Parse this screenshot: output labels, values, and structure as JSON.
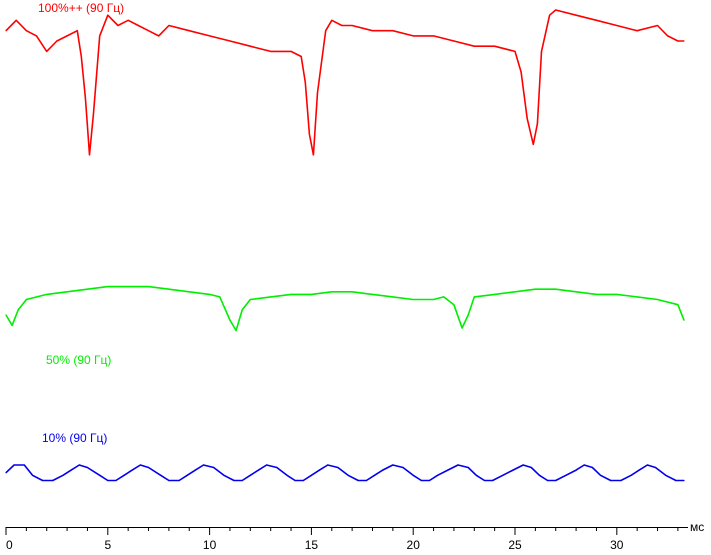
{
  "chart_data": {
    "type": "line",
    "xlabel": "мс",
    "xlim": [
      0,
      33.3
    ],
    "xticks": [
      0,
      5,
      10,
      15,
      20,
      25,
      30
    ],
    "series": [
      {
        "name": "100%++ (90 Гц)",
        "color": "#ff0000",
        "x": [
          0,
          0.5,
          1.0,
          1.5,
          2.0,
          2.5,
          3.0,
          3.5,
          3.7,
          3.9,
          4.1,
          4.3,
          4.6,
          5.0,
          5.5,
          6.0,
          6.5,
          7.0,
          7.5,
          8,
          9,
          10,
          11,
          12,
          13,
          14,
          14.5,
          14.7,
          14.9,
          15.1,
          15.3,
          15.7,
          16.0,
          16.5,
          17,
          18,
          19,
          20,
          21,
          22,
          23,
          24,
          25,
          25.3,
          25.6,
          25.9,
          26.1,
          26.3,
          26.7,
          27,
          28,
          29,
          30,
          31,
          32,
          32.5,
          33.0,
          33.3
        ],
        "y": [
          96,
          98,
          96,
          95,
          92,
          94,
          95,
          96,
          91,
          83,
          72,
          80,
          95,
          99,
          97,
          98,
          97,
          96,
          95,
          97,
          96,
          95,
          94,
          93,
          92,
          92,
          91,
          86,
          76,
          72,
          84,
          96,
          98,
          97,
          97,
          96,
          96,
          95,
          95,
          94,
          93,
          93,
          92,
          88,
          79,
          74,
          78,
          92,
          99,
          100,
          99,
          98,
          97,
          96,
          97,
          95,
          94,
          94
        ]
      },
      {
        "name": "50% (90 Гц)",
        "color": "#00ee00",
        "x": [
          0,
          0.3,
          0.6,
          1.0,
          2,
          3,
          4,
          5,
          6,
          7,
          8,
          9,
          10,
          10.5,
          11.0,
          11.3,
          11.6,
          12.0,
          13,
          14,
          15,
          16,
          17,
          18,
          19,
          20,
          21,
          21.5,
          22.0,
          22.4,
          22.7,
          23.0,
          24,
          25,
          26,
          27,
          28,
          29,
          30,
          31,
          32,
          33,
          33.3
        ],
        "y": [
          41,
          39,
          42,
          44,
          45,
          45.5,
          46,
          46.5,
          46.5,
          46.5,
          46,
          45.5,
          45,
          44.5,
          40,
          38,
          42,
          44,
          44.5,
          45,
          45,
          45.5,
          45.5,
          45,
          44.5,
          44,
          44,
          44.5,
          43,
          38.5,
          41,
          44.5,
          45,
          45.5,
          46,
          46,
          45.5,
          45,
          45,
          44.5,
          44,
          43,
          40
        ]
      },
      {
        "name": "10% (90 Гц)",
        "color": "#0000ee",
        "x": [
          0,
          0.4,
          0.9,
          1.3,
          1.8,
          2.3,
          2.8,
          3.2,
          3.6,
          4.0,
          4.6,
          5.0,
          5.4,
          5.8,
          6.2,
          6.6,
          7.0,
          7.6,
          8.0,
          8.5,
          8.9,
          9.3,
          9.7,
          10.2,
          10.7,
          11.2,
          11.6,
          12.0,
          12.4,
          12.8,
          13.3,
          13.8,
          14.2,
          14.6,
          15.0,
          15.4,
          15.8,
          16.3,
          16.8,
          17.3,
          17.7,
          18.1,
          18.5,
          19.0,
          19.5,
          20.0,
          20.4,
          20.8,
          21.2,
          21.7,
          22.2,
          22.7,
          23.1,
          23.5,
          23.9,
          24.4,
          24.9,
          25.4,
          25.8,
          26.2,
          26.6,
          27.0,
          27.5,
          28.0,
          28.4,
          28.8,
          29.2,
          29.7,
          30.2,
          30.7,
          31.1,
          31.5,
          31.9,
          32.4,
          32.9,
          33.3
        ],
        "y": [
          10.5,
          12,
          12,
          10,
          9,
          9,
          10,
          11,
          12,
          11.5,
          10,
          9,
          9,
          10,
          11,
          12,
          11.5,
          10,
          9,
          9,
          10,
          11,
          12,
          11.5,
          10,
          9,
          9,
          10,
          11,
          12,
          11.5,
          10,
          9,
          9,
          10,
          11,
          12,
          11.5,
          10,
          9,
          9,
          10,
          11,
          12,
          11.5,
          10,
          9,
          9,
          10,
          11,
          12,
          11.5,
          10,
          9,
          9,
          10,
          11,
          12,
          11.5,
          10,
          9,
          9,
          10,
          11,
          12,
          11.5,
          10,
          9,
          9,
          10,
          11,
          12,
          11.5,
          10,
          9,
          9
        ]
      }
    ]
  }
}
